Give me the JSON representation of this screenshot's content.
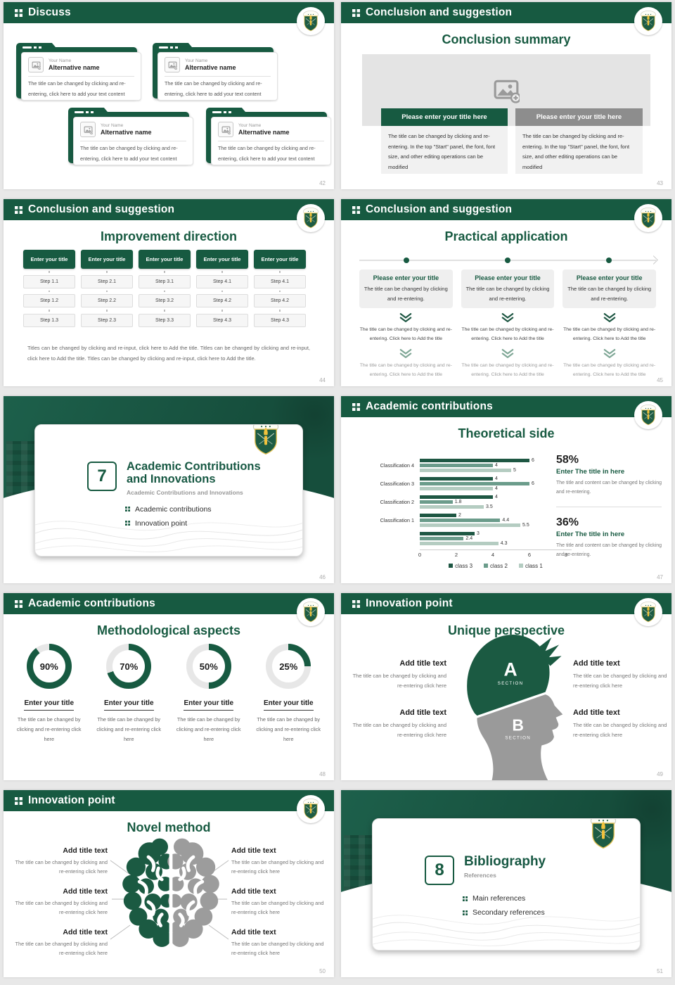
{
  "colors": {
    "accent": "#175A41",
    "chart_dark": "#1E5743",
    "chart_mid": "#6B9C8B",
    "chart_light": "#B4CCC1",
    "gray_bar": "#8D8D8D",
    "head_gray": "#9A9A9A",
    "donut_rest": "#E7E7E7"
  },
  "slides": {
    "discuss": {
      "header": "Discuss",
      "page": "42",
      "cards": [
        {
          "name_label": "Your Name",
          "alt_name": "Alternative name",
          "body": "The title can be changed by clicking and re-entering, click here to add your text content"
        },
        {
          "name_label": "Your Name",
          "alt_name": "Alternative name",
          "body": "The title can be changed by clicking and re-entering, click here to add your text content"
        },
        {
          "name_label": "Your Name",
          "alt_name": "Alternative name",
          "body": "The title can be changed by clicking and re-entering, click here to add your text content"
        },
        {
          "name_label": "Your Name",
          "alt_name": "Alternative name",
          "body": "The title can be changed by clicking and re-entering, click here to add your text content"
        }
      ]
    },
    "summary": {
      "header": "Conclusion and suggestion",
      "page": "43",
      "title": "Conclusion summary",
      "bars": [
        {
          "label": "Please enter your title here"
        },
        {
          "label": "Please enter your title here"
        }
      ],
      "panels": [
        {
          "body": "The title can be changed by clicking and re-entering. In the top \"Start\" panel, the font, font size, and other editing operations can be modified"
        },
        {
          "body": "The title can be changed by clicking and re-entering. In the top \"Start\" panel, the font, font size, and other editing operations can be modified"
        }
      ]
    },
    "improve": {
      "header": "Conclusion and suggestion",
      "page": "44",
      "title": "Improvement direction",
      "columns": [
        {
          "title": "Enter your title",
          "steps": [
            "Step 1.1",
            "Step 1.2",
            "Step 1.3"
          ]
        },
        {
          "title": "Enter your title",
          "steps": [
            "Step 2.1",
            "Step 2.2",
            "Step 2.3"
          ]
        },
        {
          "title": "Enter your title",
          "steps": [
            "Step 3.1",
            "Step 3.2",
            "Step 3.3"
          ]
        },
        {
          "title": "Enter your title",
          "steps": [
            "Step 4.1",
            "Step 4.2",
            "Step 4.3"
          ]
        },
        {
          "title": "Enter your title",
          "steps": [
            "Step 4.1",
            "Step 4.2",
            "Step 4.3"
          ]
        }
      ],
      "footer": "Titles can be changed by clicking and re-input, click here to Add the title. Titles can be changed by clicking and re-input, click here to Add the title. Titles can be changed by clicking and re-input, click here to Add the title."
    },
    "practical": {
      "header": "Conclusion and suggestion",
      "page": "45",
      "title": "Practical application",
      "columns": [
        {
          "card_title": "Please enter your title",
          "card_body": "The title can be changed by clicking and re-entering.",
          "step2": "The title can be changed by clicking and re-entering. Click here to Add the title",
          "step3": "The title can be changed by clicking and re-entering. Click here to Add the title"
        },
        {
          "card_title": "Please enter your title",
          "card_body": "The title can be changed by clicking and re-entering.",
          "step2": "The title can be changed by clicking and re-entering. Click here to Add the title",
          "step3": "The title can be changed by clicking and re-entering. Click here to Add the title"
        },
        {
          "card_title": "Please enter your title",
          "card_body": "The title can be changed by clicking and re-entering.",
          "step2": "The title can be changed by clicking and re-entering. Click here to Add the title",
          "step3": "The title can be changed by clicking and re-entering. Click here to Add the title"
        }
      ]
    },
    "sec7": {
      "page": "46",
      "number": "7",
      "title_line1": "Academic Contributions",
      "title_line2": "and Innovations",
      "subtitle": "Academic Contributions and Innovations",
      "bullets": [
        "Academic contributions",
        "Innovation point"
      ]
    },
    "theory": {
      "header": "Academic contributions",
      "page": "47",
      "title": "Theoretical side",
      "chart_data": {
        "type": "bar",
        "orientation": "horizontal",
        "title": "Theoretical side",
        "categories": [
          "Classification 4",
          "Classification 3",
          "Classification 2",
          "Classification 1",
          ""
        ],
        "series": [
          {
            "name": "class 3",
            "color": "#1E5743",
            "values": [
              6,
              4,
              4,
              2,
              3
            ]
          },
          {
            "name": "class 2",
            "color": "#6B9C8B",
            "values": [
              4,
              6,
              1.8,
              4.4,
              2.4
            ]
          },
          {
            "name": "class 1",
            "color": "#B4CCC1",
            "values": [
              5,
              4,
              3.5,
              5.5,
              4.3
            ]
          }
        ],
        "xlim": [
          0,
          8
        ],
        "x_ticks": [
          "0",
          "2",
          "4",
          "6",
          "8"
        ],
        "legend_position": "bottom"
      },
      "stats": [
        {
          "percent": "58%",
          "title": "Enter The title in here",
          "body": "The title and content can be changed by clicking and re-entering."
        },
        {
          "percent": "36%",
          "title": "Enter The title in here",
          "body": "The title and content can be changed by clicking and re-entering."
        }
      ]
    },
    "method": {
      "header": "Academic contributions",
      "page": "48",
      "title": "Methodological aspects",
      "chart_data": {
        "type": "pie",
        "subtype": "donut-progress",
        "values": [
          90,
          70,
          50,
          25
        ],
        "labels": [
          "90%",
          "70%",
          "50%",
          "25%"
        ]
      },
      "items": [
        {
          "percent": 90,
          "label": "90%",
          "title": "Enter your title",
          "body": "The title can be changed by clicking and re-entering click here"
        },
        {
          "percent": 70,
          "label": "70%",
          "title": "Enter your title",
          "body": "The title can be changed by clicking and re-entering click here"
        },
        {
          "percent": 50,
          "label": "50%",
          "title": "Enter your title",
          "body": "The title can be changed by clicking and re-entering click here"
        },
        {
          "percent": 25,
          "label": "25%",
          "title": "Enter your title",
          "body": "The title can be changed by clicking and re-entering click here"
        }
      ]
    },
    "unique": {
      "header": "Innovation point",
      "page": "49",
      "title": "Unique perspective",
      "sections": [
        {
          "letter": "A",
          "caption": "SECTION"
        },
        {
          "letter": "B",
          "caption": "SECTION"
        }
      ],
      "items": [
        {
          "title": "Add title text",
          "body": "The title can be changed by clicking and re-entering click here"
        },
        {
          "title": "Add title text",
          "body": "The title can be changed by clicking and re-entering click here"
        },
        {
          "title": "Add title text",
          "body": "The title can be changed by clicking and re-entering click here"
        },
        {
          "title": "Add title text",
          "body": "The title can be changed by clicking and re-entering click here"
        }
      ]
    },
    "novel": {
      "header": "Innovation point",
      "page": "50",
      "title": "Novel method",
      "items": [
        {
          "title": "Add title text",
          "body": "The title can be changed by clicking and re-entering click here"
        },
        {
          "title": "Add title text",
          "body": "The title can be changed by clicking and re-entering click here"
        },
        {
          "title": "Add title text",
          "body": "The title can be changed by clicking and re-entering click here"
        },
        {
          "title": "Add title text",
          "body": "The title can be changed by clicking and re-entering click here"
        },
        {
          "title": "Add title text",
          "body": "The title can be changed by clicking and re-entering click here"
        },
        {
          "title": "Add title text",
          "body": "The title can be changed by clicking and re-entering click here"
        }
      ]
    },
    "sec8": {
      "page": "51",
      "number": "8",
      "title_line1": "Bibliography",
      "subtitle": "References",
      "bullets": [
        "Main references",
        "Secondary references"
      ]
    }
  }
}
